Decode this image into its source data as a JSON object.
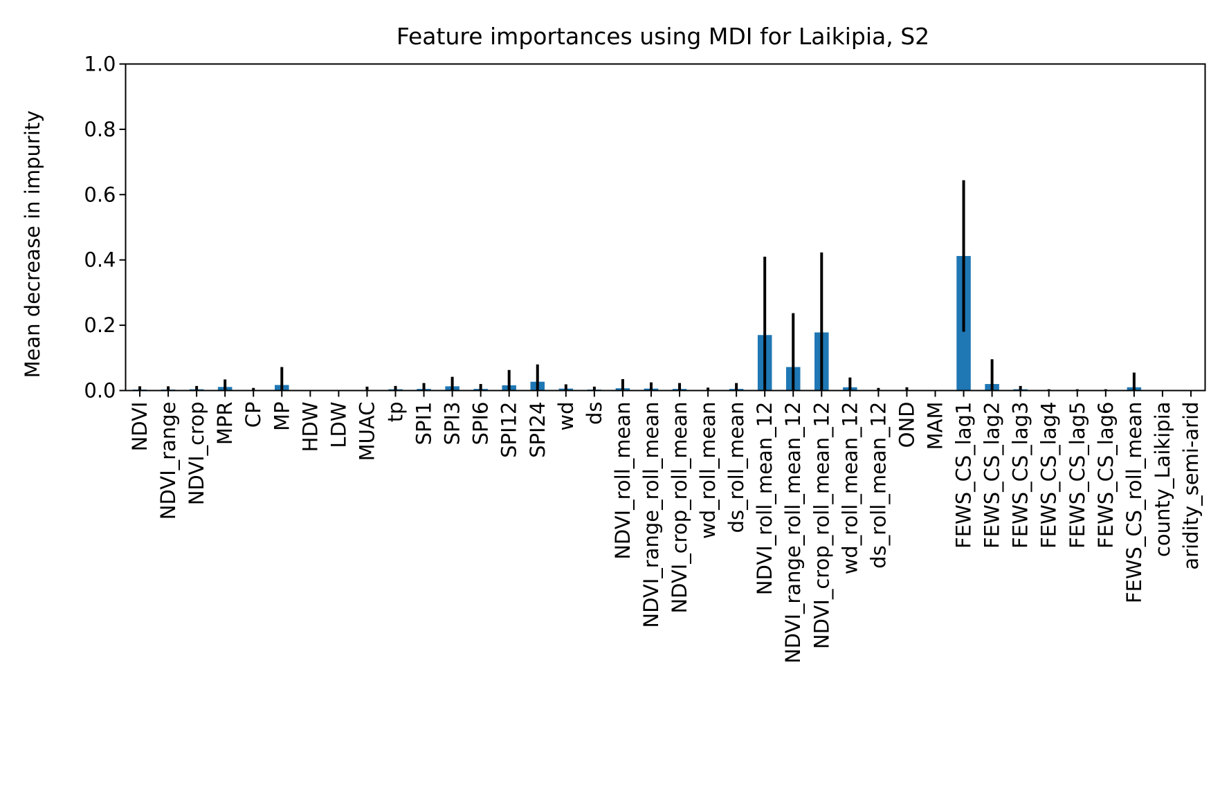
{
  "chart_data": {
    "type": "bar",
    "title": "Feature importances using MDI for Laikipia, S2",
    "xlabel": "",
    "ylabel": "Mean decrease in impurity",
    "ylim": [
      0,
      1.0
    ],
    "yticks": [
      "0.0",
      "0.2",
      "0.4",
      "0.6",
      "0.8",
      "1.0"
    ],
    "grid": false,
    "legend": "none",
    "bar_color": "#1f77b4",
    "error_bar_color": "#000000",
    "categories": [
      "NDVI",
      "NDVI_range",
      "NDVI_crop",
      "MPR",
      "CP",
      "MP",
      "HDW",
      "LDW",
      "MUAC",
      "tp",
      "SPI1",
      "SPI3",
      "SPI6",
      "SPI12",
      "SPI24",
      "wd",
      "ds",
      "NDVI_roll_mean",
      "NDVI_range_roll_mean",
      "NDVI_crop_roll_mean",
      "wd_roll_mean",
      "ds_roll_mean",
      "NDVI_roll_mean_12",
      "NDVI_range_roll_mean_12",
      "NDVI_crop_roll_mean_12",
      "wd_roll_mean_12",
      "ds_roll_mean_12",
      "OND",
      "MAM",
      "FEWS_CS_lag1",
      "FEWS_CS_lag2",
      "FEWS_CS_lag3",
      "FEWS_CS_lag4",
      "FEWS_CS_lag5",
      "FEWS_CS_lag6",
      "FEWS_CS_roll_mean",
      "county_Laikipia",
      "aridity_semi-arid"
    ],
    "values": [
      0.003,
      0.003,
      0.004,
      0.011,
      0.002,
      0.017,
      0.0,
      0.0,
      0.002,
      0.004,
      0.005,
      0.013,
      0.005,
      0.016,
      0.027,
      0.006,
      0.003,
      0.007,
      0.006,
      0.005,
      0.002,
      0.005,
      0.17,
      0.072,
      0.178,
      0.01,
      0.002,
      0.002,
      0.0,
      0.412,
      0.02,
      0.004,
      0.001,
      0.001,
      0.001,
      0.01,
      0.0,
      0.0
    ],
    "errors": [
      0.01,
      0.01,
      0.01,
      0.023,
      0.006,
      0.055,
      0.0,
      0.0,
      0.01,
      0.01,
      0.018,
      0.029,
      0.015,
      0.047,
      0.053,
      0.013,
      0.009,
      0.028,
      0.019,
      0.018,
      0.007,
      0.018,
      0.24,
      0.165,
      0.245,
      0.03,
      0.006,
      0.008,
      0.0,
      0.232,
      0.076,
      0.01,
      0.003,
      0.003,
      0.003,
      0.045,
      0.0,
      0.0
    ]
  }
}
